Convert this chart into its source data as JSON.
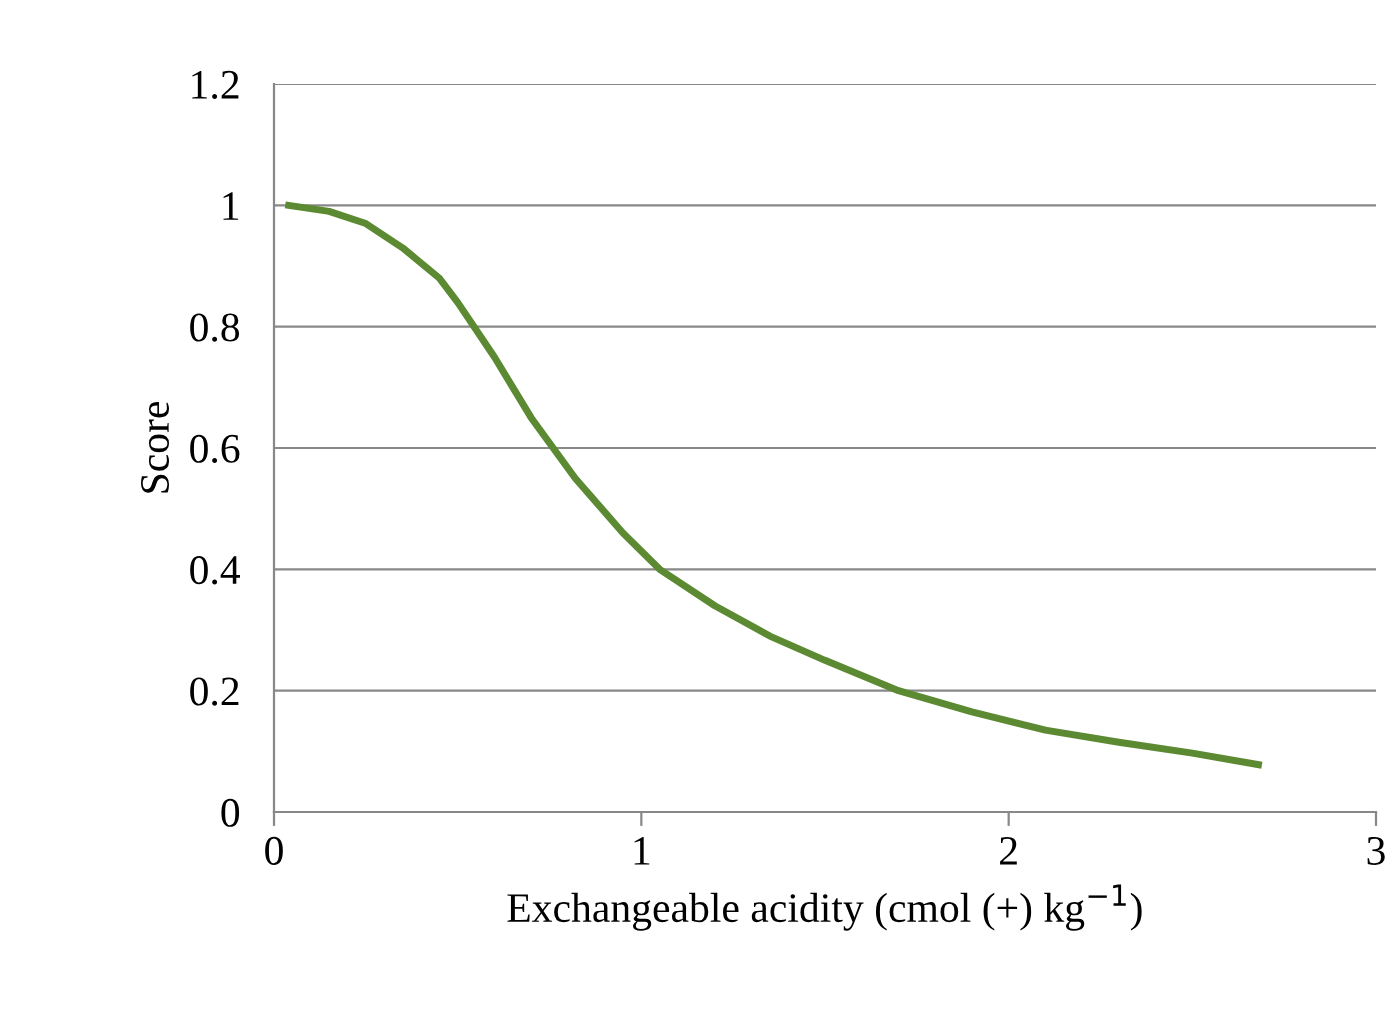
{
  "chart_data": {
    "type": "line",
    "xlabel": "Exchangeable acidity (cmol (+) kg$^{−1}$)",
    "ylabel": "Score",
    "x": [
      0.04,
      0.15,
      0.25,
      0.35,
      0.45,
      0.5,
      0.6,
      0.7,
      0.82,
      0.95,
      1.05,
      1.2,
      1.35,
      1.5,
      1.7,
      1.9,
      2.1,
      2.3,
      2.5,
      2.68
    ],
    "series": [
      {
        "color": "#5b8a32",
        "values": [
          1.0,
          0.99,
          0.97,
          0.93,
          0.88,
          0.84,
          0.75,
          0.65,
          0.55,
          0.46,
          0.4,
          0.34,
          0.29,
          0.25,
          0.2,
          0.165,
          0.135,
          0.115,
          0.097,
          0.078
        ]
      }
    ],
    "xlim": [
      0,
      3
    ],
    "xticks": [
      0,
      1,
      2,
      3
    ],
    "ylim": [
      0,
      1.2
    ],
    "yticks": [
      0,
      0.2,
      0.4,
      0.6,
      0.8,
      1,
      1.2
    ],
    "grid": "y",
    "legend": false,
    "marker": "none",
    "line_style": "solid"
  }
}
